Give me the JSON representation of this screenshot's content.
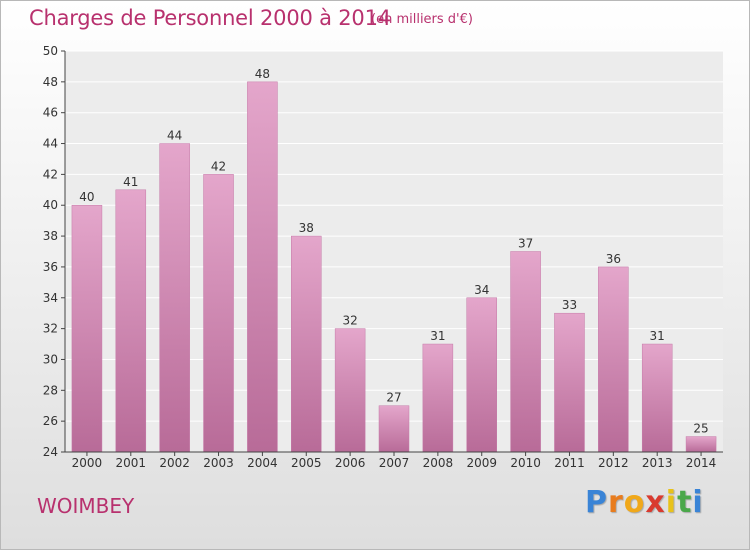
{
  "chart_data": {
    "type": "bar",
    "title": "Charges de Personnel 2000 à 2014",
    "subtitle": "(en milliers d'€)",
    "categories": [
      "2000",
      "2001",
      "2002",
      "2003",
      "2004",
      "2005",
      "2006",
      "2007",
      "2008",
      "2009",
      "2010",
      "2011",
      "2012",
      "2013",
      "2014"
    ],
    "values": [
      40,
      41,
      44,
      42,
      48,
      38,
      32,
      27,
      31,
      34,
      37,
      33,
      36,
      31,
      25
    ],
    "ylim": [
      24,
      50
    ],
    "yticks": [
      24,
      26,
      28,
      30,
      32,
      34,
      36,
      38,
      40,
      42,
      44,
      46,
      48,
      50
    ],
    "grid": true,
    "bar_color": "#d58db7",
    "accent_color": "#b8316e"
  },
  "commune": "WOIMBEY",
  "logo": {
    "letters": [
      "P",
      "r",
      "o",
      "x",
      "i",
      "t",
      "i"
    ],
    "colors": [
      "#3a84d6",
      "#e87c1e",
      "#f0a81a",
      "#d93a2f",
      "#e8c21a",
      "#4aa84a",
      "#3a84d6"
    ]
  }
}
